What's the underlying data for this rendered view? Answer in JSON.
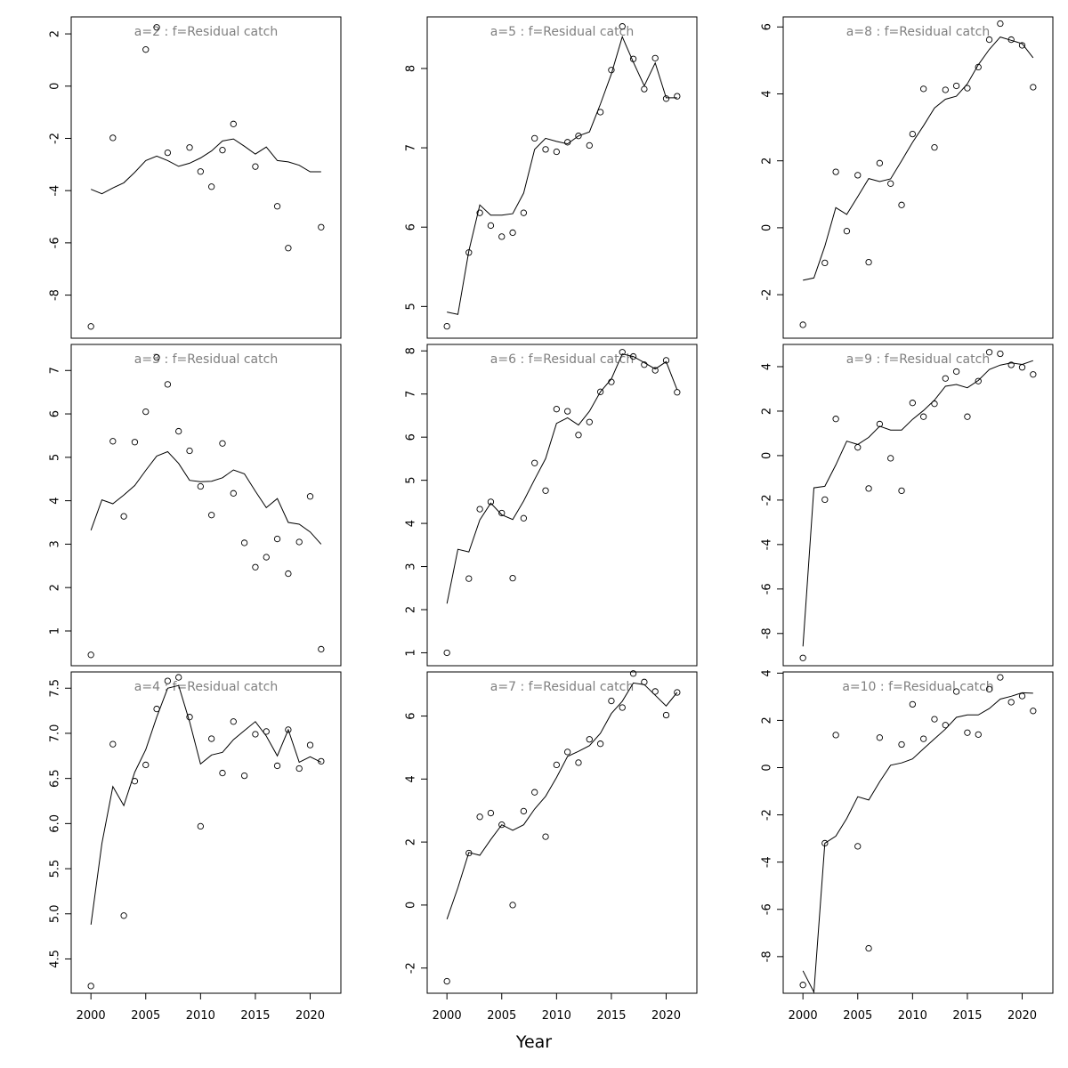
{
  "figure": {
    "xlabel": "Year"
  },
  "chart_data": [
    {
      "type": "scatter",
      "title": "a=2 : f=Residual catch",
      "x": [
        2000,
        2001,
        2002,
        2003,
        2004,
        2005,
        2006,
        2007,
        2008,
        2009,
        2010,
        2011,
        2012,
        2013,
        2014,
        2015,
        2016,
        2017,
        2018,
        2019,
        2020,
        2021
      ],
      "series": [
        {
          "kind": "points",
          "values": [
            -9.2,
            null,
            -1.98,
            null,
            null,
            1.4,
            2.25,
            -2.55,
            null,
            -2.35,
            -3.27,
            -3.85,
            -2.45,
            -1.45,
            null,
            -3.08,
            null,
            -4.6,
            -6.2,
            null,
            null,
            -5.4
          ]
        },
        {
          "kind": "line",
          "values": [
            -3.95,
            -4.12,
            -3.9,
            -3.7,
            -3.3,
            -2.85,
            -2.68,
            -2.85,
            -3.07,
            -2.95,
            -2.75,
            -2.48,
            -2.1,
            -2.02,
            -2.3,
            -2.6,
            -2.33,
            -2.85,
            -2.9,
            -3.03,
            -3.28,
            -3.28
          ]
        }
      ],
      "xlim": [
        1998.2,
        2022.8
      ],
      "ylim": [
        -9.65,
        2.65
      ],
      "yticks": [
        -8,
        -6,
        -4,
        -2,
        0,
        2
      ],
      "ytick_labels": [
        "-8",
        "-6",
        "-4",
        "-2",
        "0",
        "2"
      ],
      "xticks": [
        2000,
        2005,
        2010,
        2015,
        2020
      ],
      "xtick_labels": [],
      "xaxis_shown": false
    },
    {
      "type": "scatter",
      "title": "a=5 : f=Residual catch",
      "x": [
        2000,
        2001,
        2002,
        2003,
        2004,
        2005,
        2006,
        2007,
        2008,
        2009,
        2010,
        2011,
        2012,
        2013,
        2014,
        2015,
        2016,
        2017,
        2018,
        2019,
        2020,
        2021
      ],
      "series": [
        {
          "kind": "points",
          "values": [
            4.75,
            null,
            5.68,
            6.18,
            6.02,
            5.88,
            5.93,
            6.18,
            7.12,
            6.98,
            6.95,
            7.07,
            7.15,
            7.03,
            7.45,
            7.98,
            8.53,
            8.12,
            7.74,
            8.13,
            7.62,
            7.65
          ]
        },
        {
          "kind": "line",
          "values": [
            4.93,
            4.9,
            5.7,
            6.28,
            6.15,
            6.15,
            6.17,
            6.43,
            6.98,
            7.12,
            7.08,
            7.05,
            7.15,
            7.2,
            7.55,
            7.93,
            8.4,
            8.08,
            7.78,
            8.07,
            7.63,
            7.63
          ]
        }
      ],
      "xlim": [
        1998.2,
        2022.8
      ],
      "ylim": [
        4.6,
        8.65
      ],
      "yticks": [
        5,
        6,
        7,
        8
      ],
      "ytick_labels": [
        "5",
        "6",
        "7",
        "8"
      ],
      "xticks": [
        2000,
        2005,
        2010,
        2015,
        2020
      ],
      "xtick_labels": [],
      "xaxis_shown": false
    },
    {
      "type": "scatter",
      "title": "a=8 : f=Residual catch",
      "x": [
        2000,
        2001,
        2002,
        2003,
        2004,
        2005,
        2006,
        2007,
        2008,
        2009,
        2010,
        2011,
        2012,
        2013,
        2014,
        2015,
        2016,
        2017,
        2018,
        2019,
        2020,
        2021
      ],
      "series": [
        {
          "kind": "points",
          "values": [
            -2.9,
            null,
            -1.05,
            1.67,
            -0.1,
            1.57,
            -1.03,
            1.93,
            1.32,
            0.68,
            2.8,
            4.15,
            2.4,
            4.12,
            4.24,
            4.17,
            4.8,
            5.62,
            6.1,
            5.62,
            5.45,
            4.2
          ]
        },
        {
          "kind": "line",
          "values": [
            -1.57,
            -1.5,
            -0.55,
            0.6,
            0.4,
            0.93,
            1.47,
            1.38,
            1.46,
            2.0,
            2.55,
            3.05,
            3.58,
            3.84,
            3.93,
            4.3,
            4.87,
            5.33,
            5.7,
            5.6,
            5.5,
            5.08
          ]
        }
      ],
      "xlim": [
        1998.2,
        2022.8
      ],
      "ylim": [
        -3.3,
        6.3
      ],
      "yticks": [
        -2,
        0,
        2,
        4,
        6
      ],
      "ytick_labels": [
        "-2",
        "0",
        "2",
        "4",
        "6"
      ],
      "xticks": [
        2000,
        2005,
        2010,
        2015,
        2020
      ],
      "xtick_labels": [],
      "xaxis_shown": false
    },
    {
      "type": "scatter",
      "title": "a=3 : f=Residual catch",
      "x": [
        2000,
        2001,
        2002,
        2003,
        2004,
        2005,
        2006,
        2007,
        2008,
        2009,
        2010,
        2011,
        2012,
        2013,
        2014,
        2015,
        2016,
        2017,
        2018,
        2019,
        2020,
        2021
      ],
      "series": [
        {
          "kind": "points",
          "values": [
            0.45,
            null,
            5.37,
            3.64,
            5.35,
            6.05,
            7.3,
            6.68,
            5.6,
            5.15,
            4.33,
            3.67,
            5.32,
            4.17,
            3.03,
            2.47,
            2.7,
            3.12,
            2.32,
            3.05,
            4.1,
            0.58
          ]
        },
        {
          "kind": "line",
          "values": [
            3.32,
            4.02,
            3.93,
            4.13,
            4.35,
            4.7,
            5.03,
            5.13,
            4.86,
            4.47,
            4.44,
            4.45,
            4.53,
            4.71,
            4.62,
            4.22,
            3.84,
            4.05,
            3.5,
            3.46,
            3.28,
            3.0
          ]
        }
      ],
      "xlim": [
        1998.2,
        2022.8
      ],
      "ylim": [
        0.2,
        7.6
      ],
      "yticks": [
        1,
        2,
        3,
        4,
        5,
        6,
        7
      ],
      "ytick_labels": [
        "1",
        "2",
        "3",
        "4",
        "5",
        "6",
        "7"
      ],
      "xticks": [
        2000,
        2005,
        2010,
        2015,
        2020
      ],
      "xtick_labels": [],
      "xaxis_shown": false
    },
    {
      "type": "scatter",
      "title": "a=6 : f=Residual catch",
      "x": [
        2000,
        2001,
        2002,
        2003,
        2004,
        2005,
        2006,
        2007,
        2008,
        2009,
        2010,
        2011,
        2012,
        2013,
        2014,
        2015,
        2016,
        2017,
        2018,
        2019,
        2020,
        2021
      ],
      "series": [
        {
          "kind": "points",
          "values": [
            1.0,
            null,
            2.72,
            4.33,
            4.5,
            4.24,
            2.73,
            4.12,
            5.4,
            4.76,
            6.65,
            6.6,
            6.05,
            6.35,
            7.05,
            7.28,
            7.97,
            7.87,
            7.68,
            7.55,
            7.78,
            7.04
          ]
        },
        {
          "kind": "line",
          "values": [
            2.14,
            3.4,
            3.34,
            4.08,
            4.47,
            4.2,
            4.09,
            4.52,
            5.02,
            5.5,
            6.32,
            6.45,
            6.28,
            6.6,
            7.05,
            7.35,
            7.93,
            7.87,
            7.73,
            7.58,
            7.75,
            7.1
          ]
        }
      ],
      "xlim": [
        1998.2,
        2022.8
      ],
      "ylim": [
        0.7,
        8.15
      ],
      "yticks": [
        1,
        2,
        3,
        4,
        5,
        6,
        7,
        8
      ],
      "ytick_labels": [
        "1",
        "2",
        "3",
        "4",
        "5",
        "6",
        "7",
        "8"
      ],
      "xticks": [
        2000,
        2005,
        2010,
        2015,
        2020
      ],
      "xtick_labels": [],
      "xaxis_shown": false
    },
    {
      "type": "scatter",
      "title": "a=9 : f=Residual catch",
      "x": [
        2000,
        2001,
        2002,
        2003,
        2004,
        2005,
        2006,
        2007,
        2008,
        2009,
        2010,
        2011,
        2012,
        2013,
        2014,
        2015,
        2016,
        2017,
        2018,
        2019,
        2020,
        2021
      ],
      "series": [
        {
          "kind": "points",
          "values": [
            -9.1,
            null,
            -1.98,
            1.65,
            null,
            0.37,
            -1.48,
            1.42,
            -0.12,
            -1.58,
            2.37,
            1.75,
            2.33,
            3.47,
            3.78,
            1.75,
            3.35,
            4.65,
            4.58,
            4.08,
            3.97,
            3.65
          ]
        },
        {
          "kind": "line",
          "values": [
            -8.58,
            -1.45,
            -1.38,
            -0.42,
            0.65,
            0.5,
            0.82,
            1.32,
            1.15,
            1.15,
            1.63,
            2.03,
            2.5,
            3.12,
            3.2,
            3.05,
            3.38,
            3.87,
            4.07,
            4.17,
            4.1,
            4.27
          ]
        }
      ],
      "xlim": [
        1998.2,
        2022.8
      ],
      "ylim": [
        -9.45,
        5.0
      ],
      "yticks": [
        -8,
        -6,
        -4,
        -2,
        0,
        2,
        4
      ],
      "ytick_labels": [
        "-8",
        "-6",
        "-4",
        "-2",
        "0",
        "2",
        "4"
      ],
      "xticks": [
        2000,
        2005,
        2010,
        2015,
        2020
      ],
      "xtick_labels": [],
      "xaxis_shown": false
    },
    {
      "type": "scatter",
      "title": "a=4 : f=Residual catch",
      "x": [
        2000,
        2001,
        2002,
        2003,
        2004,
        2005,
        2006,
        2007,
        2008,
        2009,
        2010,
        2011,
        2012,
        2013,
        2014,
        2015,
        2016,
        2017,
        2018,
        2019,
        2020,
        2021
      ],
      "series": [
        {
          "kind": "points",
          "values": [
            4.2,
            null,
            6.88,
            4.98,
            6.47,
            6.65,
            7.27,
            7.58,
            7.62,
            7.18,
            5.97,
            6.94,
            6.56,
            7.13,
            6.53,
            6.99,
            7.02,
            6.64,
            7.04,
            6.61,
            6.87,
            6.69
          ]
        },
        {
          "kind": "line",
          "values": [
            4.88,
            5.78,
            6.41,
            6.2,
            6.57,
            6.82,
            7.18,
            7.5,
            7.53,
            7.13,
            6.66,
            6.76,
            6.79,
            6.93,
            7.03,
            7.13,
            6.97,
            6.75,
            7.04,
            6.68,
            6.74,
            6.68
          ]
        }
      ],
      "xlim": [
        1998.2,
        2022.8
      ],
      "ylim": [
        4.12,
        7.68
      ],
      "yticks": [
        4.5,
        5.0,
        5.5,
        6.0,
        6.5,
        7.0,
        7.5
      ],
      "ytick_labels": [
        "4.5",
        "5.0",
        "5.5",
        "6.0",
        "6.5",
        "7.0",
        "7.5"
      ],
      "xticks": [
        2000,
        2005,
        2010,
        2015,
        2020
      ],
      "xtick_labels": [
        "2000",
        "2005",
        "2010",
        "2015",
        "2020"
      ],
      "xaxis_shown": true
    },
    {
      "type": "scatter",
      "title": "a=7 : f=Residual catch",
      "x": [
        2000,
        2001,
        2002,
        2003,
        2004,
        2005,
        2006,
        2007,
        2008,
        2009,
        2010,
        2011,
        2012,
        2013,
        2014,
        2015,
        2016,
        2017,
        2018,
        2019,
        2020,
        2021
      ],
      "series": [
        {
          "kind": "points",
          "values": [
            -2.42,
            null,
            1.65,
            2.8,
            2.92,
            2.55,
            0.0,
            2.98,
            3.58,
            2.17,
            4.45,
            4.86,
            4.52,
            5.26,
            5.12,
            6.48,
            6.27,
            7.35,
            7.08,
            6.78,
            6.03,
            6.75
          ]
        },
        {
          "kind": "line",
          "values": [
            -0.45,
            0.55,
            1.67,
            1.58,
            2.08,
            2.55,
            2.37,
            2.55,
            3.05,
            3.45,
            4.05,
            4.72,
            4.88,
            5.06,
            5.45,
            6.08,
            6.47,
            7.05,
            7.0,
            6.66,
            6.32,
            6.75
          ]
        }
      ],
      "xlim": [
        1998.2,
        2022.8
      ],
      "ylim": [
        -2.8,
        7.4
      ],
      "yticks": [
        -2,
        0,
        2,
        4,
        6
      ],
      "ytick_labels": [
        "-2",
        "0",
        "2",
        "4",
        "6"
      ],
      "xticks": [
        2000,
        2005,
        2010,
        2015,
        2020
      ],
      "xtick_labels": [
        "2000",
        "2005",
        "2010",
        "2015",
        "2020"
      ],
      "xaxis_shown": true
    },
    {
      "type": "scatter",
      "title": "a=10 : f=Residual catch",
      "x": [
        2000,
        2001,
        2002,
        2003,
        2004,
        2005,
        2006,
        2007,
        2008,
        2009,
        2010,
        2011,
        2012,
        2013,
        2014,
        2015,
        2016,
        2017,
        2018,
        2019,
        2020,
        2021
      ],
      "series": [
        {
          "kind": "points",
          "values": [
            -9.2,
            null,
            -3.2,
            1.38,
            null,
            -3.33,
            -7.65,
            1.27,
            null,
            0.98,
            2.68,
            1.22,
            2.05,
            1.8,
            3.22,
            1.48,
            1.4,
            3.32,
            3.82,
            2.77,
            3.03,
            2.4
          ]
        },
        {
          "kind": "line",
          "values": [
            -8.6,
            -9.5,
            -3.2,
            -2.9,
            -2.15,
            -1.23,
            -1.37,
            -0.6,
            0.1,
            0.2,
            0.37,
            0.8,
            1.22,
            1.63,
            2.13,
            2.23,
            2.23,
            2.5,
            2.9,
            3.02,
            3.17,
            3.15
          ]
        }
      ],
      "xlim": [
        1998.2,
        2022.8
      ],
      "ylim": [
        -9.55,
        4.05
      ],
      "yticks": [
        -8,
        -6,
        -4,
        -2,
        0,
        2,
        4
      ],
      "ytick_labels": [
        "-8",
        "-6",
        "-4",
        "-2",
        "0",
        "2",
        "4"
      ],
      "xticks": [
        2000,
        2005,
        2010,
        2015,
        2020
      ],
      "xtick_labels": [
        "2000",
        "2005",
        "2010",
        "2015",
        "2020"
      ],
      "xaxis_shown": true
    }
  ]
}
